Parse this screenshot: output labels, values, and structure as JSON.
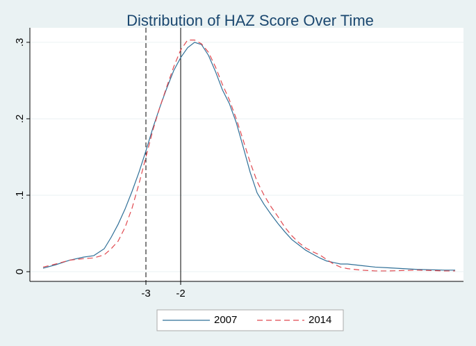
{
  "chart_data": {
    "type": "line",
    "title": "Distribution of HAZ Score Over Time",
    "x": [
      -5.96,
      -5.6,
      -5.2,
      -4.8,
      -4.5,
      -4.2,
      -4.0,
      -3.8,
      -3.6,
      -3.4,
      -3.2,
      -3.0,
      -2.8,
      -2.6,
      -2.4,
      -2.2,
      -2.0,
      -1.8,
      -1.6,
      -1.4,
      -1.2,
      -1.0,
      -0.8,
      -0.6,
      -0.4,
      -0.2,
      0,
      0.2,
      0.4,
      0.6,
      0.8,
      1.0,
      1.2,
      1.4,
      1.6,
      1.8,
      2.0,
      2.2,
      2.4,
      2.6,
      2.8,
      3.2,
      3.6,
      4.0,
      4.8,
      5.6,
      5.9
    ],
    "series": [
      {
        "name": "2007",
        "color": "#2f6f97",
        "dash": "solid",
        "values": [
          0.0045,
          0.009,
          0.015,
          0.019,
          0.021,
          0.03,
          0.045,
          0.062,
          0.082,
          0.105,
          0.13,
          0.158,
          0.188,
          0.215,
          0.24,
          0.263,
          0.28,
          0.293,
          0.3,
          0.297,
          0.283,
          0.262,
          0.238,
          0.22,
          0.195,
          0.163,
          0.13,
          0.103,
          0.088,
          0.075,
          0.063,
          0.052,
          0.042,
          0.035,
          0.028,
          0.023,
          0.018,
          0.014,
          0.012,
          0.01,
          0.01,
          0.008,
          0.006,
          0.005,
          0.003,
          0.002,
          0.002
        ]
      },
      {
        "name": "2014",
        "color": "#e0484f",
        "dash": "dash",
        "values": [
          0.006,
          0.01,
          0.015,
          0.017,
          0.018,
          0.022,
          0.03,
          0.04,
          0.058,
          0.083,
          0.115,
          0.15,
          0.185,
          0.215,
          0.242,
          0.268,
          0.29,
          0.303,
          0.303,
          0.298,
          0.287,
          0.268,
          0.245,
          0.225,
          0.2,
          0.172,
          0.143,
          0.118,
          0.1,
          0.085,
          0.072,
          0.058,
          0.047,
          0.038,
          0.031,
          0.026,
          0.022,
          0.016,
          0.01,
          0.006,
          0.004,
          0.002,
          0.001,
          0.001,
          0.002,
          0.001,
          0.001
        ]
      }
    ],
    "xlim": [
      -6.34,
      6.14
    ],
    "ylim": [
      -0.0127,
      0.319
    ],
    "xticks": [
      -3,
      -2
    ],
    "yticks": [
      0,
      {
        "value": 0.1,
        "label": ".1"
      },
      {
        "value": 0.2,
        "label": ".2"
      },
      {
        "value": 0.3,
        "label": ".3"
      }
    ],
    "reference_lines": [
      {
        "value": -3,
        "dash": "dash"
      },
      {
        "value": -2,
        "dash": "solid"
      }
    ],
    "grid": true,
    "legend": "bottom"
  }
}
